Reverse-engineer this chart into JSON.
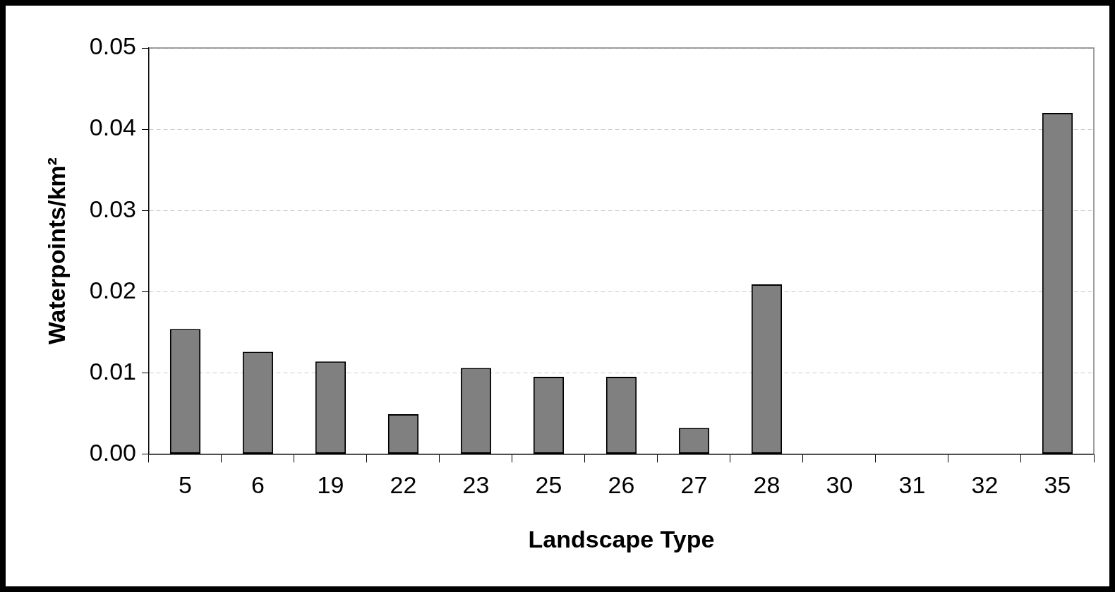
{
  "chart_data": {
    "type": "bar",
    "xlabel": "Landscape Type",
    "ylabel": "Waterpoints/km²",
    "categories": [
      "5",
      "6",
      "19",
      "22",
      "23",
      "25",
      "26",
      "27",
      "28",
      "30",
      "31",
      "32",
      "35"
    ],
    "values": [
      0.0154,
      0.0126,
      0.0114,
      0.0049,
      0.0106,
      0.0095,
      0.0095,
      0.0032,
      0.0209,
      0,
      0,
      0,
      0.042
    ],
    "color": "#808080",
    "ylim": [
      0,
      0.05
    ],
    "yticks": [
      {
        "value": 0,
        "label": "0.00"
      },
      0.01,
      0.02,
      0.03,
      0.04,
      0.05
    ],
    "grid": "y",
    "legend": false
  }
}
